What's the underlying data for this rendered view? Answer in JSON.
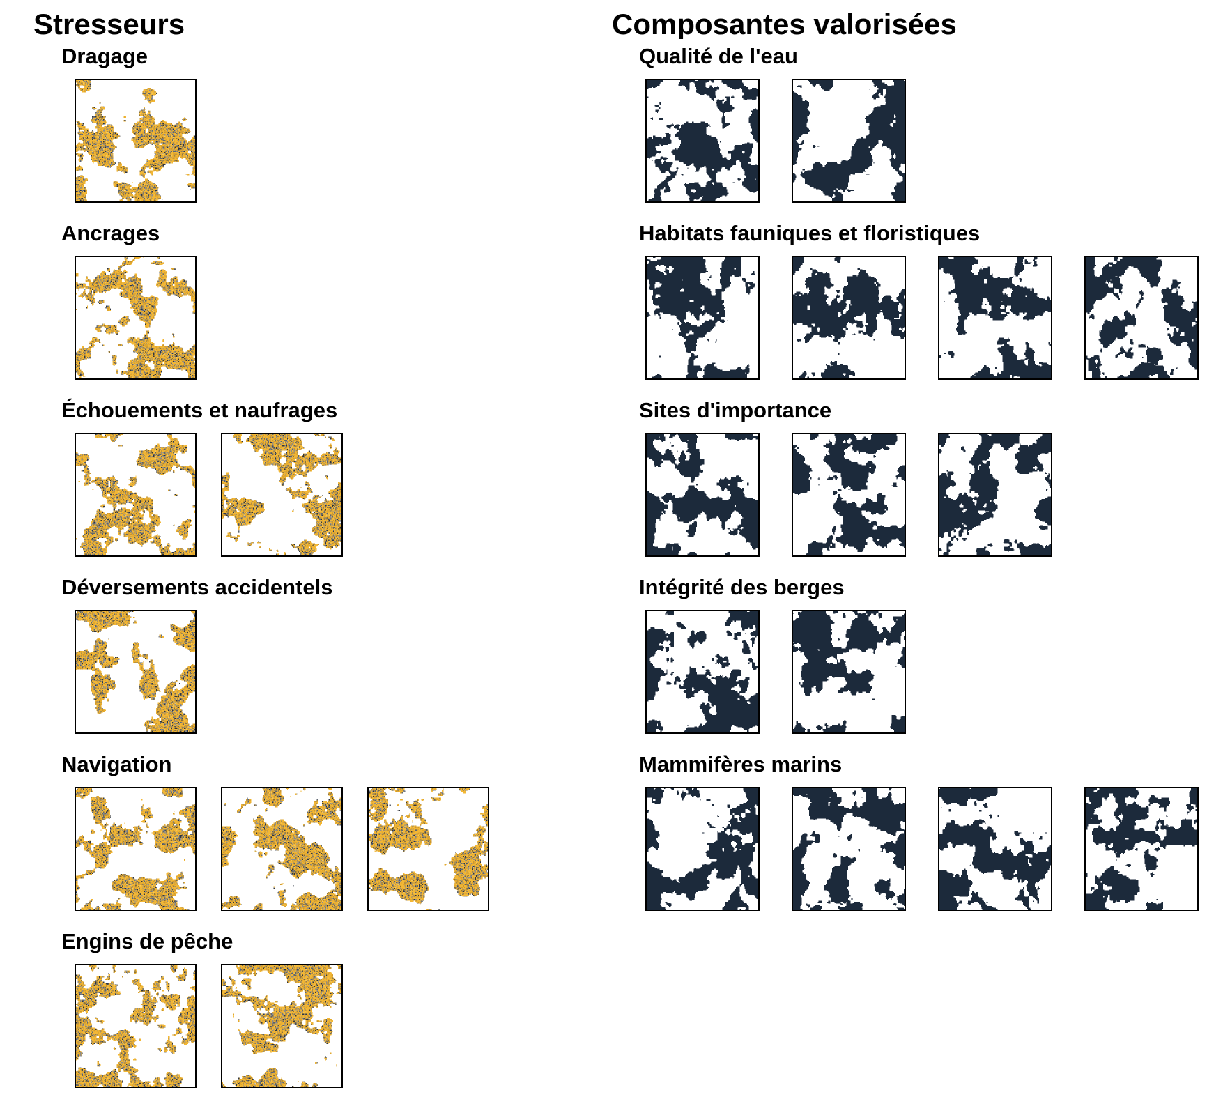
{
  "colors": {
    "stressor_palette": [
      "#F2B736",
      "#E0A72E",
      "#C99633",
      "#8C8C8C",
      "#5E6670",
      "#2E3440",
      "#F7C95A"
    ],
    "component": "#1C2A3B",
    "background": "#FFFFFF",
    "border": "#000000"
  },
  "stresseurs": {
    "title": "Stresseurs",
    "groups": [
      {
        "title": "Dragage",
        "layers": 1
      },
      {
        "title": "Ancrages",
        "layers": 1
      },
      {
        "title": "Échouements et naufrages",
        "layers": 2
      },
      {
        "title": "Déversements accidentels",
        "layers": 1
      },
      {
        "title": "Navigation",
        "layers": 3
      },
      {
        "title": "Engins de pêche",
        "layers": 2
      }
    ]
  },
  "composantes": {
    "title": "Composantes valorisées",
    "groups": [
      {
        "title": "Qualité de l'eau",
        "layers": 2
      },
      {
        "title": "Habitats fauniques et floristiques",
        "layers": 4
      },
      {
        "title": "Sites d'importance",
        "layers": 3
      },
      {
        "title": "Intégrité des berges",
        "layers": 2
      },
      {
        "title": "Mammifères marins",
        "layers": 4
      }
    ]
  }
}
